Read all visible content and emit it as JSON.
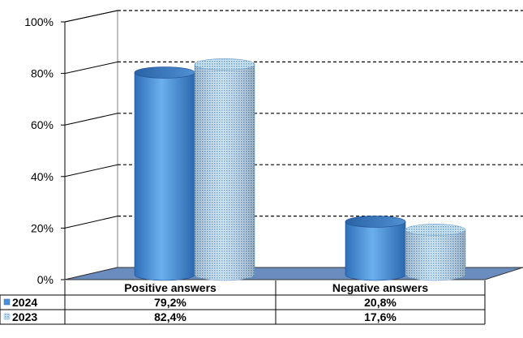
{
  "chart_data": {
    "type": "bar",
    "categories": [
      "Positive answers",
      "Negative answers"
    ],
    "series": [
      {
        "name": "2024",
        "values": [
          79.2,
          20.8
        ],
        "labels": [
          "79,2%",
          "20,8%"
        ],
        "color": "#4A90D9",
        "pattern": "solid"
      },
      {
        "name": "2023",
        "values": [
          82.4,
          17.6
        ],
        "labels": [
          "82,4%",
          "17,6%"
        ],
        "color": "#A8D4F5",
        "pattern": "dotted"
      }
    ],
    "y_ticks": [
      "0%",
      "20%",
      "40%",
      "60%",
      "80%",
      "100%"
    ],
    "ylim": [
      0,
      100
    ],
    "grid": "dashed",
    "legend": "data-table-left",
    "floor_color": "#6A8CBF"
  }
}
